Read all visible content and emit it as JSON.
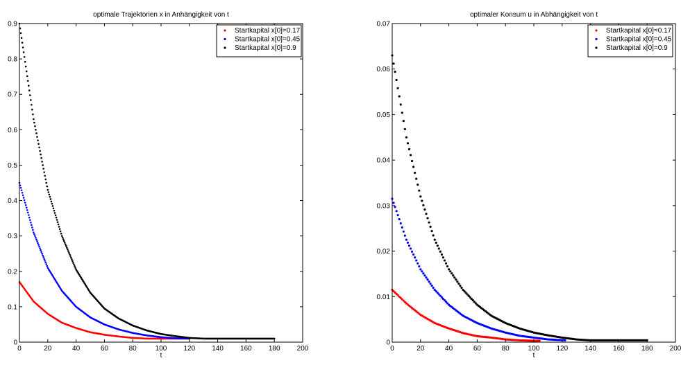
{
  "chart_data": [
    {
      "type": "scatter",
      "title": "optimale Trajektorien x in Anhängigkeit von t",
      "xlabel": "t",
      "ylabel": "",
      "xlim": [
        0,
        200
      ],
      "ylim": [
        0,
        0.9
      ],
      "xticks": [
        "0",
        "20",
        "40",
        "60",
        "80",
        "100",
        "120",
        "140",
        "160",
        "180",
        "200"
      ],
      "yticks": [
        "0",
        "0.1",
        "0.2",
        "0.3",
        "0.4",
        "0.5",
        "0.6",
        "0.7",
        "0.8",
        "0.9"
      ],
      "grid": false,
      "legend_position": "top-right",
      "series": [
        {
          "name": "Startkapital x[0]=0.17",
          "color": "#ff0000",
          "x": [
            0,
            10,
            20,
            30,
            40,
            50,
            60,
            70,
            80,
            90,
            100,
            110,
            120
          ],
          "y": [
            0.17,
            0.115,
            0.08,
            0.055,
            0.04,
            0.028,
            0.021,
            0.016,
            0.012,
            0.01,
            0.01,
            0.01,
            0.01
          ]
        },
        {
          "name": "Startkapital x[0]=0.45",
          "color": "#0000ff",
          "x": [
            0,
            10,
            20,
            30,
            40,
            50,
            60,
            70,
            80,
            90,
            100,
            110,
            120
          ],
          "y": [
            0.45,
            0.31,
            0.21,
            0.145,
            0.1,
            0.07,
            0.05,
            0.036,
            0.026,
            0.019,
            0.014,
            0.011,
            0.01
          ]
        },
        {
          "name": "Startkapital x[0]=0.9",
          "color": "#000000",
          "x": [
            0,
            10,
            20,
            30,
            40,
            50,
            60,
            70,
            80,
            90,
            100,
            110,
            120,
            130,
            140,
            150,
            160,
            170,
            180
          ],
          "y": [
            0.9,
            0.63,
            0.43,
            0.3,
            0.205,
            0.14,
            0.095,
            0.067,
            0.047,
            0.033,
            0.023,
            0.017,
            0.012,
            0.01,
            0.01,
            0.01,
            0.01,
            0.01,
            0.01
          ]
        }
      ]
    },
    {
      "type": "scatter",
      "title": "optimaler Konsum u in Abhängigkeit von t",
      "xlabel": "t",
      "ylabel": "",
      "xlim": [
        0,
        200
      ],
      "ylim": [
        0,
        0.07
      ],
      "xticks": [
        "0",
        "20",
        "40",
        "60",
        "80",
        "100",
        "120",
        "140",
        "160",
        "180",
        "200"
      ],
      "yticks": [
        "0",
        "0.01",
        "0.02",
        "0.03",
        "0.04",
        "0.05",
        "0.06",
        "0.07"
      ],
      "grid": false,
      "legend_position": "top-right",
      "series": [
        {
          "name": "Startkapital x[0]=0.17",
          "color": "#ff0000",
          "x": [
            0,
            10,
            20,
            30,
            40,
            50,
            60,
            70,
            80,
            90,
            100,
            104
          ],
          "y": [
            0.0115,
            0.0085,
            0.006,
            0.0042,
            0.003,
            0.002,
            0.0013,
            0.001,
            0.0006,
            0.0004,
            0.0003,
            0.0003
          ]
        },
        {
          "name": "Startkapital x[0]=0.45",
          "color": "#0000ff",
          "x": [
            0,
            10,
            20,
            30,
            40,
            50,
            60,
            70,
            80,
            90,
            100,
            110,
            122
          ],
          "y": [
            0.0315,
            0.0225,
            0.016,
            0.0115,
            0.0082,
            0.0058,
            0.0042,
            0.003,
            0.0021,
            0.0014,
            0.001,
            0.0006,
            0.0004
          ]
        },
        {
          "name": "Startkapital x[0]=0.9",
          "color": "#000000",
          "x": [
            0,
            10,
            20,
            30,
            40,
            50,
            60,
            70,
            80,
            90,
            100,
            110,
            120,
            130,
            140,
            150,
            160,
            170,
            180
          ],
          "y": [
            0.063,
            0.045,
            0.032,
            0.0225,
            0.016,
            0.0115,
            0.0082,
            0.0058,
            0.0042,
            0.003,
            0.0021,
            0.0015,
            0.001,
            0.0006,
            0.0004,
            0.0004,
            0.0004,
            0.0004,
            0.0004
          ]
        }
      ]
    }
  ]
}
